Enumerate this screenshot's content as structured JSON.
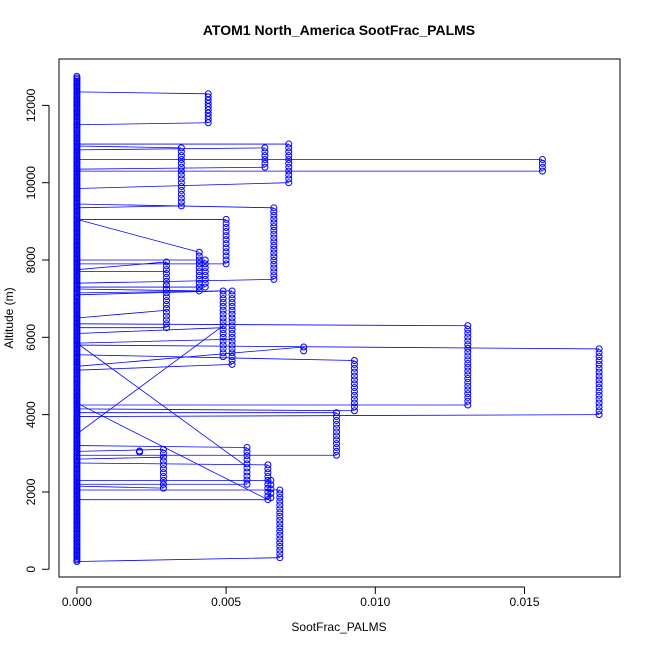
{
  "chart_data": {
    "type": "scatter",
    "title": "ATOM1 North_America SootFrac_PALMS",
    "xlabel": "SootFrac_PALMS",
    "ylabel": "Altitude (m)",
    "xlim": [
      -0.0006,
      0.0182
    ],
    "ylim": [
      -200,
      13200
    ],
    "xticks": [
      0.0,
      0.005,
      0.01,
      0.015
    ],
    "xtick_labels": [
      "0.000",
      "0.005",
      "0.010",
      "0.015"
    ],
    "yticks": [
      0,
      2000,
      4000,
      6000,
      8000,
      10000,
      12000
    ],
    "ytick_labels": [
      "0",
      "2000",
      "4000",
      "6000",
      "8000",
      "10000",
      "12000"
    ],
    "grid": false,
    "legend": "none",
    "series": [
      {
        "style": "points-and-lines",
        "color": "#0000ff",
        "point_groups": [
          {
            "x": 0.0,
            "y_from": 200,
            "y_to": 12750,
            "count": 300
          },
          {
            "x": 0.0044,
            "y_from": 11550,
            "y_to": 12300,
            "count": 10
          },
          {
            "x": 0.0035,
            "y_from": 9400,
            "y_to": 10900,
            "count": 16
          },
          {
            "x": 0.0063,
            "y_from": 10400,
            "y_to": 10900,
            "count": 6
          },
          {
            "x": 0.0071,
            "y_from": 10000,
            "y_to": 11000,
            "count": 11
          },
          {
            "x": 0.0156,
            "y_from": 10300,
            "y_to": 10600,
            "count": 4
          },
          {
            "x": 0.0066,
            "y_from": 7500,
            "y_to": 9350,
            "count": 20
          },
          {
            "x": 0.005,
            "y_from": 7900,
            "y_to": 9050,
            "count": 12
          },
          {
            "x": 0.0041,
            "y_from": 7200,
            "y_to": 8200,
            "count": 11
          },
          {
            "x": 0.0043,
            "y_from": 7300,
            "y_to": 8000,
            "count": 8
          },
          {
            "x": 0.003,
            "y_from": 6250,
            "y_to": 7950,
            "count": 18
          },
          {
            "x": 0.0049,
            "y_from": 5500,
            "y_to": 7200,
            "count": 18
          },
          {
            "x": 0.0052,
            "y_from": 5300,
            "y_to": 7200,
            "count": 20
          },
          {
            "x": 0.0076,
            "y_from": 5650,
            "y_to": 5750,
            "count": 2
          },
          {
            "x": 0.0131,
            "y_from": 4250,
            "y_to": 6300,
            "count": 22
          },
          {
            "x": 0.0175,
            "y_from": 4000,
            "y_to": 5700,
            "count": 18
          },
          {
            "x": 0.0093,
            "y_from": 4100,
            "y_to": 5400,
            "count": 14
          },
          {
            "x": 0.0087,
            "y_from": 2950,
            "y_to": 4050,
            "count": 12
          },
          {
            "x": 0.0029,
            "y_from": 2100,
            "y_to": 3100,
            "count": 11
          },
          {
            "x": 0.0057,
            "y_from": 2200,
            "y_to": 3150,
            "count": 10
          },
          {
            "x": 0.0064,
            "y_from": 1800,
            "y_to": 2700,
            "count": 10
          },
          {
            "x": 0.0065,
            "y_from": 1850,
            "y_to": 2300,
            "count": 5
          },
          {
            "x": 0.0068,
            "y_from": 300,
            "y_to": 2050,
            "count": 19
          },
          {
            "x": 0.0021,
            "y_from": 3030,
            "y_to": 3060,
            "count": 2
          }
        ],
        "segments": [
          [
            0,
            12350,
            0.0044,
            12300
          ],
          [
            0,
            11500,
            0.0044,
            11550
          ],
          [
            0,
            11000,
            0.0071,
            11000
          ],
          [
            0,
            10950,
            0.0035,
            10900
          ],
          [
            0,
            10850,
            0.0063,
            10900
          ],
          [
            0,
            10600,
            0.0156,
            10600
          ],
          [
            0,
            10300,
            0.0156,
            10300
          ],
          [
            0,
            10350,
            0.0063,
            10400
          ],
          [
            0,
            9850,
            0.0071,
            10000
          ],
          [
            0,
            9450,
            0.0066,
            9350
          ],
          [
            0,
            9350,
            0.0035,
            9400
          ],
          [
            0,
            9050,
            0.005,
            9050
          ],
          [
            0,
            9050,
            0.0041,
            8200
          ],
          [
            0,
            8000,
            0.0043,
            8000
          ],
          [
            0,
            7900,
            0.005,
            7900
          ],
          [
            0,
            7750,
            0.003,
            7950
          ],
          [
            0,
            7700,
            0.003,
            7700
          ],
          [
            0,
            7400,
            0.0066,
            7500
          ],
          [
            0,
            7300,
            0.0043,
            7300
          ],
          [
            0,
            7250,
            0.0041,
            7200
          ],
          [
            0,
            7150,
            0.0052,
            7200
          ],
          [
            0,
            7100,
            0.0049,
            7200
          ],
          [
            0,
            6500,
            0.003,
            6700
          ],
          [
            0,
            6250,
            0.003,
            6250
          ],
          [
            0,
            6100,
            0.0049,
            6250
          ],
          [
            0,
            6350,
            0.0131,
            6300
          ],
          [
            0,
            5850,
            0.0052,
            5950
          ],
          [
            0,
            5800,
            0.0175,
            5700
          ],
          [
            0,
            5850,
            0.0057,
            2650
          ],
          [
            0,
            5250,
            0.0076,
            5750
          ],
          [
            0,
            5550,
            0.0093,
            5400
          ],
          [
            0,
            5150,
            0.0052,
            5300
          ],
          [
            0,
            4250,
            0.0131,
            4250
          ],
          [
            0,
            4150,
            0.0093,
            4100
          ],
          [
            0,
            4050,
            0.0087,
            4050
          ],
          [
            0,
            3950,
            0.0175,
            4000
          ],
          [
            0,
            3500,
            0.0049,
            6300
          ],
          [
            0,
            4300,
            0.0064,
            1800
          ],
          [
            0,
            3200,
            0.0057,
            3150
          ],
          [
            0,
            3050,
            0.0029,
            3100
          ],
          [
            0,
            2950,
            0.0087,
            2950
          ],
          [
            0,
            2850,
            0.0029,
            2900
          ],
          [
            0,
            2750,
            0.0064,
            2700
          ],
          [
            0,
            2300,
            0.0065,
            2300
          ],
          [
            0,
            2200,
            0.0057,
            2200
          ],
          [
            0,
            2150,
            0.0029,
            2100
          ],
          [
            0,
            2050,
            0.0068,
            2050
          ],
          [
            0,
            1800,
            0.0064,
            1800
          ],
          [
            0,
            200,
            0.0068,
            300
          ]
        ]
      }
    ]
  }
}
